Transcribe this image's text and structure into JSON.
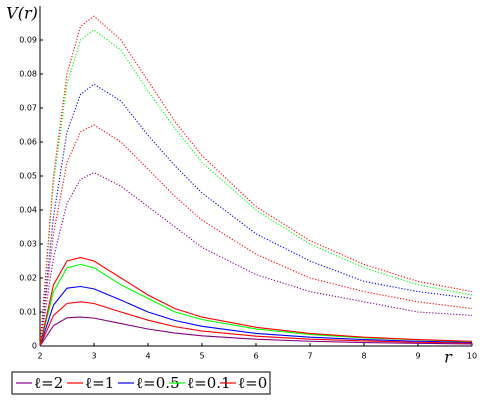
{
  "chart_data": {
    "type": "line",
    "y_label": "V(r)",
    "x_label": "r",
    "x": [
      2,
      2.25,
      2.5,
      2.75,
      3,
      3.5,
      4,
      4.5,
      5,
      6,
      7,
      8,
      9,
      10
    ],
    "xlim": [
      2,
      10
    ],
    "xticks": [
      2,
      3,
      4,
      5,
      6,
      7,
      8,
      9,
      10
    ],
    "ylim": [
      0,
      0.1
    ],
    "yticks": [
      0,
      0.01,
      0.02,
      0.03,
      0.04,
      0.05,
      0.06,
      0.07,
      0.08,
      0.09
    ],
    "series": [
      {
        "name": "ℓ=2",
        "color": "#800080",
        "values": [
          0,
          0.006,
          0.0083,
          0.0085,
          0.0082,
          0.0066,
          0.005,
          0.0038,
          0.003,
          0.002,
          0.0014,
          0.001,
          0.0008,
          0.0006
        ]
      },
      {
        "name": "ℓ=1",
        "color": "#ff0000",
        "values": [
          0,
          0.009,
          0.0125,
          0.013,
          0.0125,
          0.01,
          0.0076,
          0.0057,
          0.0044,
          0.0029,
          0.002,
          0.0015,
          0.0011,
          0.0009
        ]
      },
      {
        "name": "ℓ=0.5",
        "color": "#0000ff",
        "values": [
          0,
          0.012,
          0.017,
          0.0175,
          0.0168,
          0.0135,
          0.01,
          0.0075,
          0.0058,
          0.0037,
          0.0026,
          0.0019,
          0.0014,
          0.0011
        ]
      },
      {
        "name": "ℓ=0.1",
        "color": "#00ff00",
        "values": [
          0,
          0.016,
          0.023,
          0.024,
          0.023,
          0.018,
          0.014,
          0.01,
          0.0078,
          0.005,
          0.0034,
          0.0024,
          0.0018,
          0.0013
        ]
      },
      {
        "name": "ℓ=0",
        "color": "#ff0000",
        "values": [
          0,
          0.018,
          0.025,
          0.026,
          0.025,
          0.02,
          0.015,
          0.011,
          0.0085,
          0.0055,
          0.0037,
          0.0026,
          0.0019,
          0.0014
        ]
      },
      {
        "color": "#800080",
        "dash": "dotted",
        "values": [
          0,
          0.026,
          0.042,
          0.049,
          0.051,
          0.047,
          0.041,
          0.035,
          0.029,
          0.021,
          0.016,
          0.013,
          0.01,
          0.009
        ]
      },
      {
        "color": "#ff0000",
        "dash": "dotted",
        "values": [
          0,
          0.033,
          0.054,
          0.063,
          0.065,
          0.06,
          0.052,
          0.044,
          0.037,
          0.027,
          0.02,
          0.016,
          0.013,
          0.011
        ]
      },
      {
        "color": "#0000ff",
        "dash": "dotted",
        "values": [
          0,
          0.038,
          0.063,
          0.074,
          0.077,
          0.072,
          0.062,
          0.053,
          0.045,
          0.033,
          0.025,
          0.019,
          0.016,
          0.014
        ]
      },
      {
        "color": "#00ff00",
        "dash": "dotted",
        "values": [
          0,
          0.048,
          0.077,
          0.09,
          0.093,
          0.087,
          0.075,
          0.064,
          0.054,
          0.04,
          0.03,
          0.023,
          0.018,
          0.015
        ]
      },
      {
        "color": "#ff0000",
        "dash": "dotted",
        "values": [
          0,
          0.05,
          0.08,
          0.094,
          0.097,
          0.09,
          0.078,
          0.066,
          0.056,
          0.041,
          0.031,
          0.024,
          0.019,
          0.016
        ]
      }
    ]
  }
}
